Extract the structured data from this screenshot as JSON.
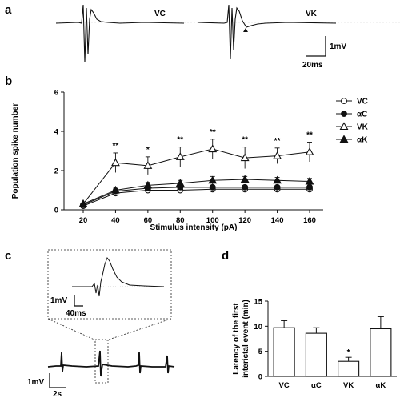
{
  "panels": {
    "a": "a",
    "b": "b",
    "c": "c",
    "d": "d"
  },
  "panel_a": {
    "trace_labels": [
      "VC",
      "VK"
    ],
    "scale_v": "1mV",
    "scale_t": "20ms"
  },
  "panel_c": {
    "inset_scale_v": "1mV",
    "inset_scale_t": "40ms",
    "scale_v": "1mV",
    "scale_t": "2s"
  },
  "chart_data": [
    {
      "type": "line",
      "panel": "b",
      "title": "",
      "xlabel": "Stimulus intensity (pA)",
      "ylabel": "Population spike number",
      "categories": [
        "20",
        "40",
        "60",
        "80",
        "100",
        "120",
        "140",
        "160"
      ],
      "ylim": [
        0,
        6
      ],
      "yticks": [
        "0",
        "2",
        "4",
        "6"
      ],
      "legend_position": "right",
      "series": [
        {
          "name": "VC",
          "marker": "open-circle",
          "values": [
            0.2,
            0.85,
            1.0,
            1.0,
            1.05,
            1.05,
            1.05,
            1.05
          ],
          "err": [
            0.05,
            0.1,
            0.1,
            0.1,
            0.1,
            0.1,
            0.1,
            0.1
          ]
        },
        {
          "name": "αC",
          "marker": "filled-circle",
          "values": [
            0.25,
            0.95,
            1.1,
            1.15,
            1.15,
            1.15,
            1.15,
            1.15
          ],
          "err": [
            0.05,
            0.1,
            0.1,
            0.1,
            0.1,
            0.1,
            0.1,
            0.1
          ]
        },
        {
          "name": "VK",
          "marker": "open-triangle",
          "values": [
            0.3,
            2.4,
            2.25,
            2.7,
            3.1,
            2.65,
            2.75,
            2.95
          ],
          "err": [
            0.05,
            0.5,
            0.45,
            0.5,
            0.5,
            0.55,
            0.4,
            0.5
          ]
        },
        {
          "name": "αK",
          "marker": "filled-triangle",
          "values": [
            0.3,
            1.0,
            1.25,
            1.35,
            1.5,
            1.55,
            1.5,
            1.45
          ],
          "err": [
            0.05,
            0.1,
            0.15,
            0.15,
            0.2,
            0.15,
            0.15,
            0.15
          ]
        }
      ],
      "annotations": [
        "**",
        "*",
        "**",
        "**",
        "**",
        "**",
        "**"
      ]
    },
    {
      "type": "bar",
      "panel": "d",
      "title": "",
      "xlabel": "",
      "ylabel": "Latency of the first\ninterictal event (min)",
      "categories": [
        "VC",
        "αC",
        "VK",
        "αK"
      ],
      "values": [
        9.7,
        8.6,
        3.0,
        9.5
      ],
      "err": [
        1.4,
        1.1,
        0.8,
        2.4
      ],
      "ylim": [
        0,
        15
      ],
      "yticks": [
        "0",
        "5",
        "10",
        "15"
      ],
      "annotations": [
        "",
        "",
        "*",
        ""
      ]
    }
  ]
}
